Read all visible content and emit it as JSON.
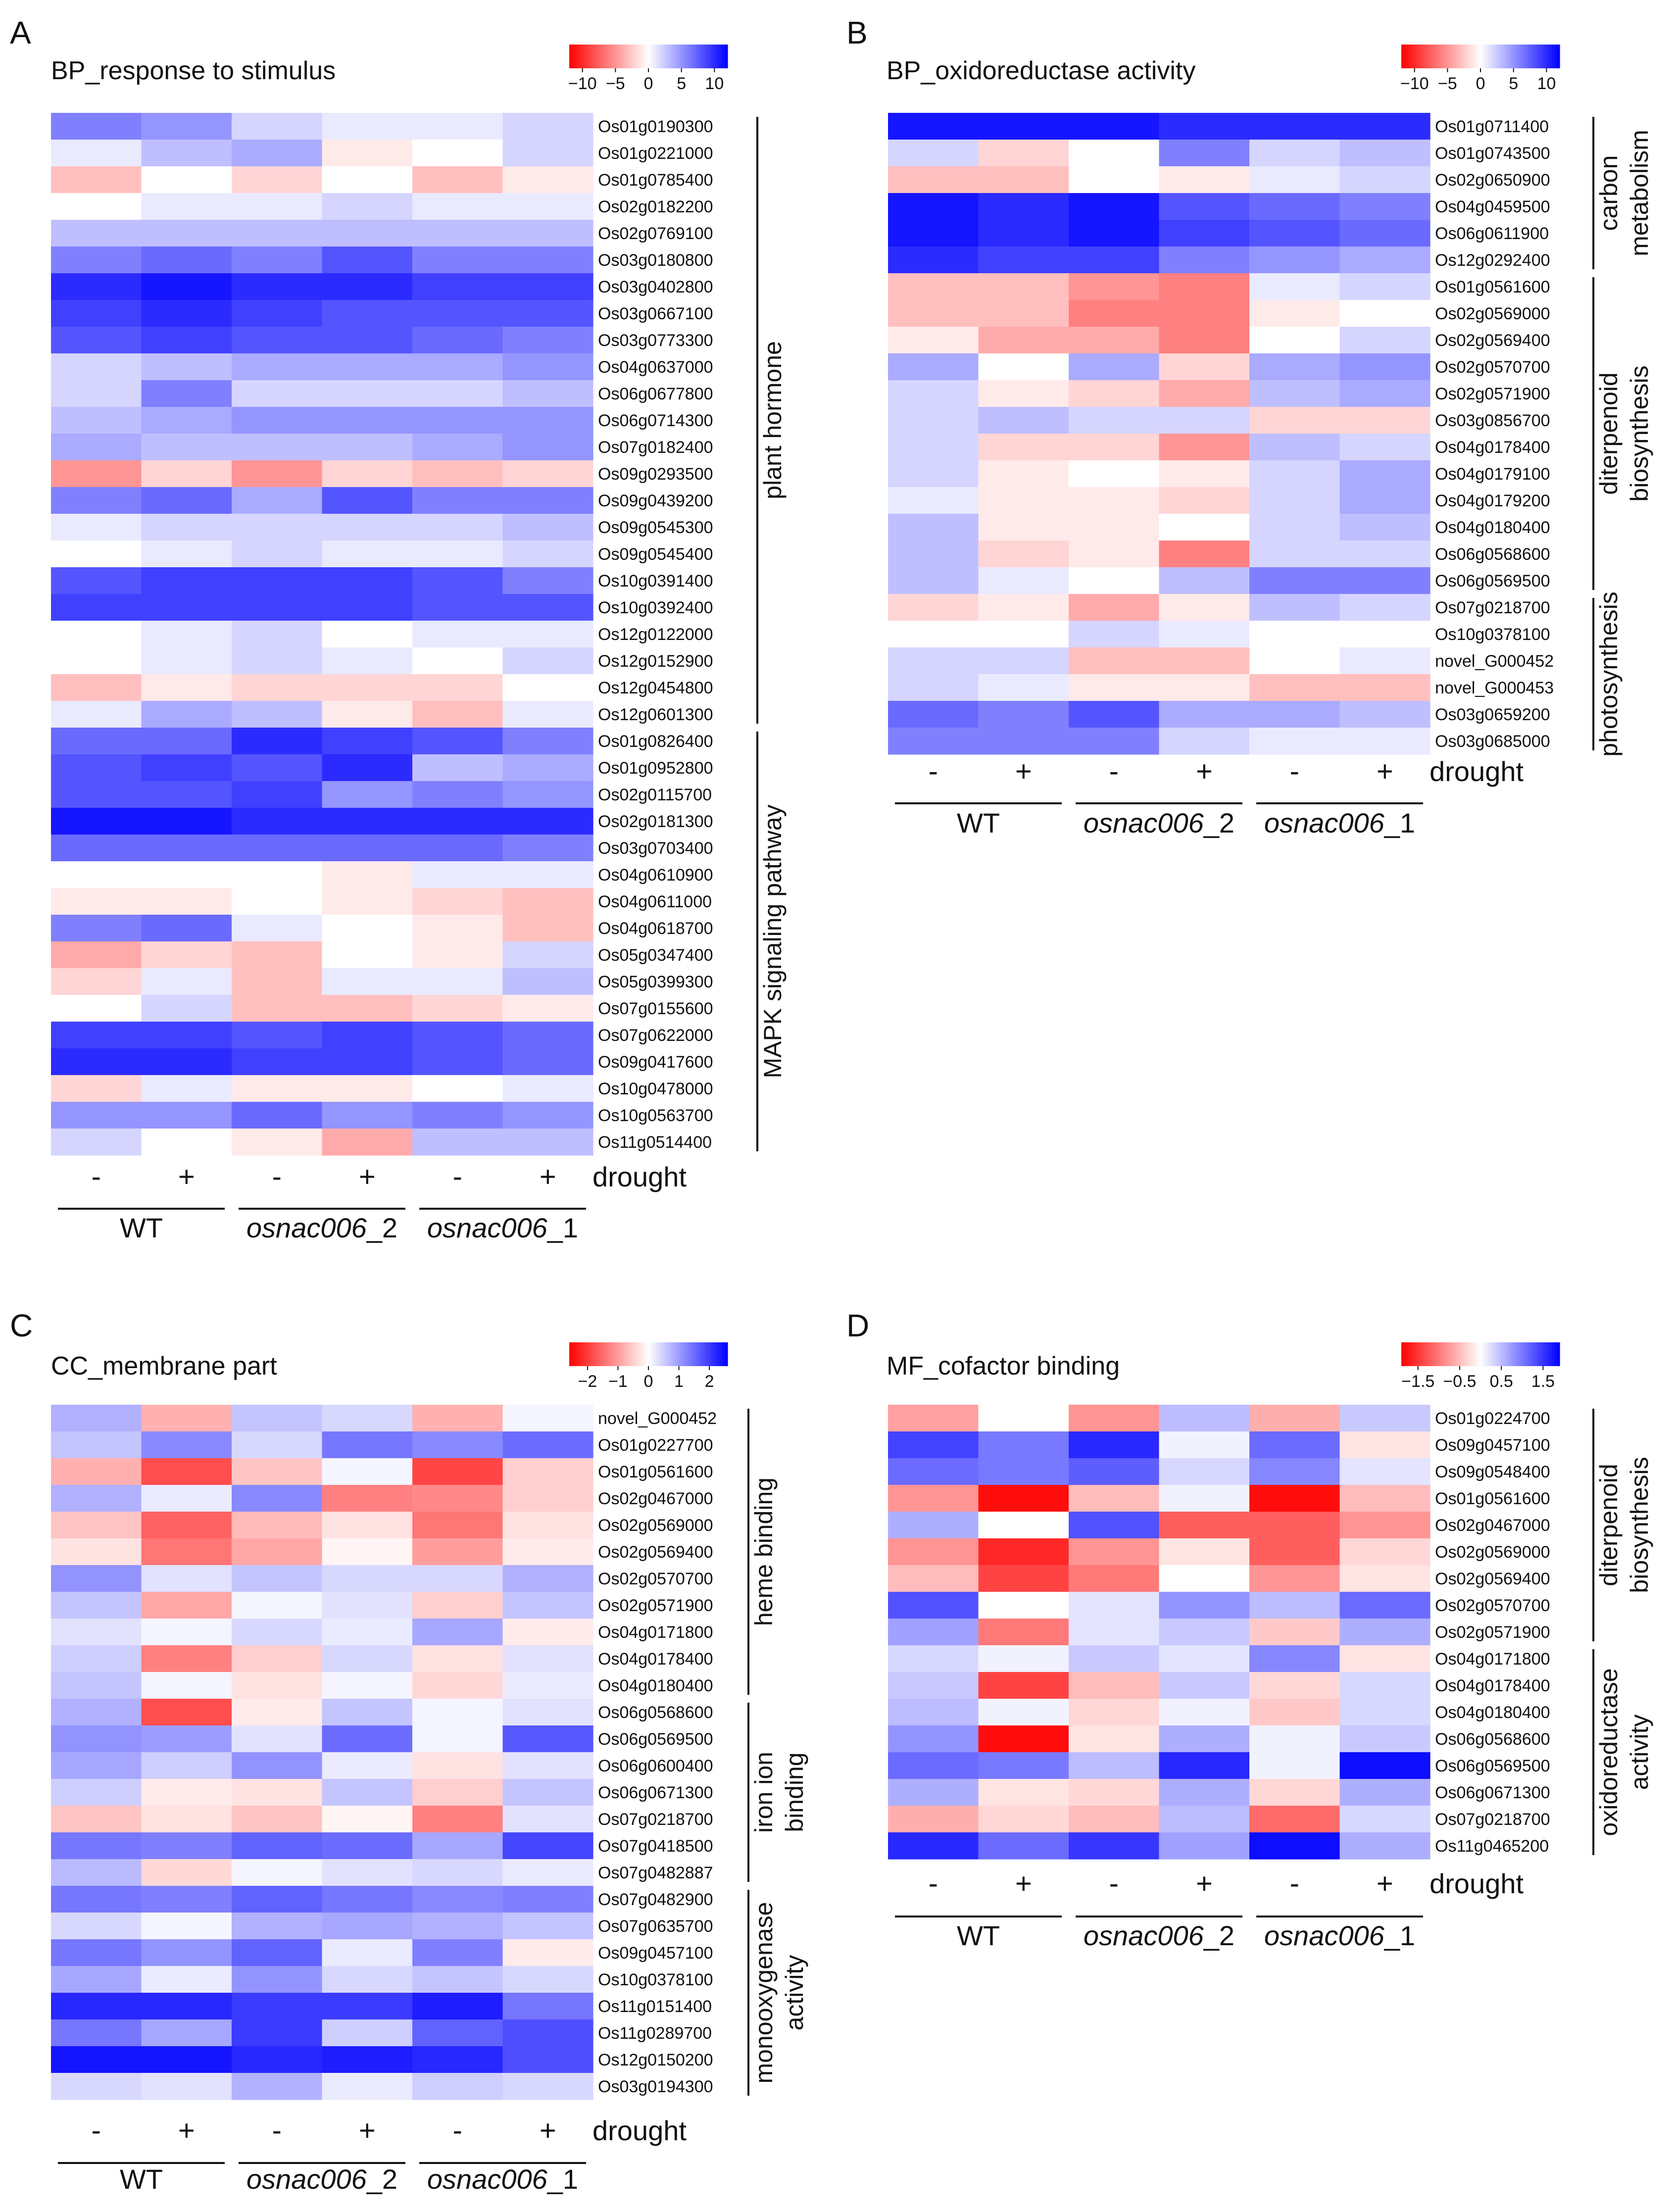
{
  "figure": {
    "conditions": [
      "-",
      "+",
      "-",
      "+",
      "-",
      "+"
    ],
    "condition_axis_label": "drought",
    "genotypes": [
      "WT",
      "osnac006_2",
      "osnac006_1"
    ],
    "genotype_parts": [
      {
        "italic": "",
        "suffix": "WT"
      },
      {
        "italic": "osnac006",
        "suffix": "_2"
      },
      {
        "italic": "osnac006",
        "suffix": "_1"
      }
    ],
    "low_color": "#ff0000",
    "mid_color": "#ffffff",
    "high_color": "#0000ff"
  },
  "chart_data": [
    {
      "type": "heatmap",
      "panel_letter": "A",
      "title": "BP_response to stimulus",
      "legend": {
        "ticks": [
          -10,
          -5,
          0,
          5,
          10
        ],
        "tick_labels": [
          "−10",
          "−5",
          "0",
          "5",
          "10"
        ],
        "range": [
          -12,
          12
        ]
      },
      "rows": [
        "Os01g0190300",
        "Os01g0221000",
        "Os01g0785400",
        "Os02g0182200",
        "Os02g0769100",
        "Os03g0180800",
        "Os03g0402800",
        "Os03g0667100",
        "Os03g0773300",
        "Os04g0637000",
        "Os06g0677800",
        "Os06g0714300",
        "Os07g0182400",
        "Os09g0293500",
        "Os09g0439200",
        "Os09g0545300",
        "Os09g0545400",
        "Os10g0391400",
        "Os10g0392400",
        "Os12g0122000",
        "Os12g0152900",
        "Os12g0454800",
        "Os12g0601300",
        "Os01g0826400",
        "Os01g0952800",
        "Os02g0115700",
        "Os02g0181300",
        "Os03g0703400",
        "Os04g0610900",
        "Os04g0611000",
        "Os04g0618700",
        "Os05g0347400",
        "Os05g0399300",
        "Os07g0155600",
        "Os07g0622000",
        "Os09g0417600",
        "Os10g0478000",
        "Os10g0563700",
        "Os11g0514400"
      ],
      "values": [
        [
          6,
          5,
          2,
          1,
          1,
          2
        ],
        [
          1,
          3,
          4,
          -1,
          0,
          2
        ],
        [
          -3,
          0,
          -2,
          0,
          -3,
          -1
        ],
        [
          0,
          1,
          1,
          2,
          1,
          1
        ],
        [
          3,
          3,
          3,
          3,
          3,
          3
        ],
        [
          6,
          7,
          6,
          8,
          6,
          6
        ],
        [
          10,
          11,
          10,
          10,
          9,
          9
        ],
        [
          9,
          10,
          9,
          8,
          8,
          8
        ],
        [
          8,
          9,
          8,
          8,
          7,
          6
        ],
        [
          2,
          3,
          4,
          4,
          4,
          5
        ],
        [
          2,
          6,
          2,
          2,
          2,
          3
        ],
        [
          3,
          4,
          5,
          5,
          5,
          5
        ],
        [
          4,
          3,
          3,
          3,
          4,
          5
        ],
        [
          -5,
          -2,
          -5,
          -2,
          -3,
          -2
        ],
        [
          6,
          7,
          4,
          8,
          6,
          6
        ],
        [
          1,
          2,
          2,
          2,
          2,
          3
        ],
        [
          0,
          1,
          2,
          1,
          1,
          2
        ],
        [
          8,
          9,
          9,
          9,
          8,
          6
        ],
        [
          9,
          9,
          9,
          9,
          8,
          8
        ],
        [
          0,
          1,
          2,
          0,
          1,
          1
        ],
        [
          0,
          1,
          2,
          1,
          0,
          2
        ],
        [
          -3,
          -1,
          -2,
          -2,
          -2,
          0
        ],
        [
          1,
          4,
          3,
          -1,
          -3,
          1
        ],
        [
          7,
          7,
          10,
          9,
          8,
          6
        ],
        [
          8,
          9,
          8,
          10,
          3,
          4
        ],
        [
          8,
          8,
          9,
          5,
          6,
          5
        ],
        [
          11,
          11,
          10,
          10,
          10,
          10
        ],
        [
          7,
          7,
          7,
          7,
          7,
          6
        ],
        [
          0,
          0,
          0,
          -1,
          1,
          1
        ],
        [
          -1,
          -1,
          0,
          -1,
          -2,
          -3
        ],
        [
          6,
          7,
          1,
          0,
          -1,
          -3
        ],
        [
          -4,
          -2,
          -3,
          0,
          -1,
          2
        ],
        [
          -2,
          1,
          -3,
          1,
          1,
          3
        ],
        [
          0,
          2,
          -3,
          -3,
          -2,
          -1
        ],
        [
          9,
          9,
          8,
          9,
          8,
          7
        ],
        [
          10,
          10,
          9,
          9,
          8,
          7
        ],
        [
          -2,
          1,
          -1,
          -1,
          0,
          1
        ],
        [
          5,
          5,
          7,
          5,
          6,
          5
        ],
        [
          2,
          0,
          -1,
          -4,
          3,
          3
        ]
      ],
      "groups": [
        {
          "label": "plant hormone",
          "lines": [
            "plant hormone"
          ],
          "start": 0,
          "end": 22
        },
        {
          "label": "MAPK signaling pathway",
          "lines": [
            "MAPK signaling pathway"
          ],
          "start": 23,
          "end": 38
        }
      ]
    },
    {
      "type": "heatmap",
      "panel_letter": "B",
      "title": "BP_oxidoreductase activity",
      "legend": {
        "ticks": [
          -10,
          -5,
          0,
          5,
          10
        ],
        "tick_labels": [
          "−10",
          "−5",
          "0",
          "5",
          "10"
        ],
        "range": [
          -12,
          12
        ]
      },
      "rows": [
        "Os01g0711400",
        "Os01g0743500",
        "Os02g0650900",
        "Os04g0459500",
        "Os06g0611900",
        "Os12g0292400",
        "Os01g0561600",
        "Os02g0569000",
        "Os02g0569400",
        "Os02g0570700",
        "Os02g0571900",
        "Os03g0856700",
        "Os04g0178400",
        "Os04g0179100",
        "Os04g0179200",
        "Os04g0180400",
        "Os06g0568600",
        "Os06g0569500",
        "Os07g0218700",
        "Os10g0378100",
        "novel_G000452",
        "novel_G000453",
        "Os03g0659200",
        "Os03g0685000"
      ],
      "values": [
        [
          11,
          11,
          11,
          10,
          10,
          10
        ],
        [
          2,
          -2,
          0,
          6,
          2,
          3
        ],
        [
          -3,
          -3,
          0,
          -1,
          1,
          2
        ],
        [
          11,
          10,
          11,
          8,
          7,
          6
        ],
        [
          11,
          10,
          11,
          9,
          8,
          7
        ],
        [
          10,
          9,
          9,
          6,
          5,
          4
        ],
        [
          -3,
          -3,
          -5,
          -6,
          1,
          2
        ],
        [
          -3,
          -3,
          -6,
          -6,
          -1,
          0
        ],
        [
          -1,
          -4,
          -4,
          -6,
          0,
          2
        ],
        [
          4,
          0,
          4,
          -2,
          4,
          5
        ],
        [
          2,
          -1,
          -2,
          -4,
          3,
          4
        ],
        [
          2,
          3,
          2,
          2,
          -2,
          -2
        ],
        [
          2,
          -2,
          -2,
          -5,
          3,
          2
        ],
        [
          2,
          -1,
          0,
          -1,
          2,
          4
        ],
        [
          1,
          -1,
          -1,
          -2,
          2,
          4
        ],
        [
          3,
          -1,
          -1,
          0,
          2,
          3
        ],
        [
          3,
          -2,
          -1,
          -6,
          2,
          2
        ],
        [
          3,
          1,
          0,
          3,
          6,
          6
        ],
        [
          -2,
          -1,
          -4,
          -1,
          3,
          2
        ],
        [
          0,
          0,
          2,
          1,
          0,
          0
        ],
        [
          2,
          2,
          -3,
          -3,
          0,
          1
        ],
        [
          2,
          1,
          -1,
          -1,
          -3,
          -3
        ],
        [
          7,
          6,
          8,
          4,
          4,
          3
        ],
        [
          6,
          6,
          6,
          2,
          1,
          1
        ]
      ],
      "groups": [
        {
          "label": "carbon metabolism",
          "lines": [
            "carbon",
            "metabolism"
          ],
          "start": 0,
          "end": 5
        },
        {
          "label": "diterpenoid biosynthesis",
          "lines": [
            "diterpenoid",
            "biosynthesis"
          ],
          "start": 6,
          "end": 17
        },
        {
          "label": "photosynthesis",
          "lines": [
            "photosynthesis"
          ],
          "start": 18,
          "end": 23
        }
      ]
    },
    {
      "type": "heatmap",
      "panel_letter": "C",
      "title": "CC_membrane part",
      "legend": {
        "ticks": [
          -2,
          -1,
          0,
          1,
          2
        ],
        "tick_labels": [
          "−2",
          "−1",
          "0",
          "1",
          "2"
        ],
        "range": [
          -2.6,
          2.6
        ]
      },
      "rows": [
        "novel_G000452",
        "Os01g0227700",
        "Os01g0561600",
        "Os02g0467000",
        "Os02g0569000",
        "Os02g0569400",
        "Os02g0570700",
        "Os02g0571900",
        "Os04g0171800",
        "Os04g0178400",
        "Os04g0180400",
        "Os06g0568600",
        "Os06g0569500",
        "Os06g0600400",
        "Os06g0671300",
        "Os07g0218700",
        "Os07g0418500",
        "Os07g0482887",
        "Os07g0482900",
        "Os07g0635700",
        "Os09g0457100",
        "Os10g0378100",
        "Os11g0151400",
        "Os11g0289700",
        "Os12g0150200",
        "Os03g0194300"
      ],
      "values": [
        [
          0.8,
          -0.8,
          0.6,
          0.4,
          -0.8,
          0.1
        ],
        [
          0.6,
          1.2,
          0.4,
          1.4,
          1.2,
          1.5
        ],
        [
          -0.8,
          -1.8,
          -0.6,
          0.1,
          -1.9,
          -0.5
        ],
        [
          0.8,
          0.2,
          1.2,
          -1.3,
          -1.2,
          -0.5
        ],
        [
          -0.6,
          -1.6,
          -0.7,
          -0.3,
          -1.4,
          -0.3
        ],
        [
          -0.3,
          -1.4,
          -0.9,
          -0.1,
          -1.0,
          -0.2
        ],
        [
          1.1,
          0.3,
          0.6,
          0.4,
          0.4,
          0.8
        ],
        [
          0.6,
          -0.9,
          0.1,
          0.3,
          -0.5,
          0.6
        ],
        [
          0.3,
          0.1,
          0.4,
          0.2,
          0.9,
          -0.2
        ],
        [
          0.5,
          -1.3,
          -0.5,
          0.4,
          -0.3,
          0.3
        ],
        [
          0.6,
          0.1,
          -0.3,
          0.1,
          -0.4,
          0.2
        ],
        [
          0.8,
          -1.8,
          -0.2,
          0.6,
          0.1,
          0.3
        ],
        [
          1.1,
          1.0,
          0.3,
          1.5,
          0.1,
          1.7
        ],
        [
          0.9,
          0.5,
          1.1,
          0.2,
          -0.3,
          0.3
        ],
        [
          0.5,
          -0.2,
          -0.3,
          0.6,
          -0.5,
          0.6
        ],
        [
          -0.6,
          -0.3,
          -0.6,
          -0.1,
          -1.3,
          0.3
        ],
        [
          1.4,
          1.3,
          1.6,
          1.5,
          0.9,
          1.9
        ],
        [
          0.7,
          -0.4,
          0.1,
          0.3,
          0.4,
          0.2
        ],
        [
          1.4,
          1.3,
          1.6,
          1.4,
          1.2,
          1.3
        ],
        [
          0.4,
          0.1,
          0.8,
          0.9,
          0.8,
          0.6
        ],
        [
          1.4,
          1.1,
          1.6,
          0.2,
          1.3,
          -0.2
        ],
        [
          0.9,
          0.2,
          1.1,
          0.4,
          0.6,
          0.4
        ],
        [
          2.2,
          2.2,
          2.0,
          2.0,
          2.3,
          1.4
        ],
        [
          1.4,
          0.9,
          2.0,
          0.5,
          1.6,
          1.8
        ],
        [
          2.4,
          2.4,
          2.2,
          2.3,
          2.2,
          1.8
        ],
        [
          0.4,
          0.3,
          0.8,
          0.2,
          0.5,
          0.4
        ]
      ],
      "groups": [
        {
          "label": "heme binding",
          "lines": [
            "heme binding"
          ],
          "start": 0,
          "end": 10
        },
        {
          "label": "iron ion binding",
          "lines": [
            "iron ion",
            "binding"
          ],
          "start": 11,
          "end": 17
        },
        {
          "label": "monooxygenase activity",
          "lines": [
            "monooxygenase",
            "activity"
          ],
          "start": 18,
          "end": 25
        }
      ]
    },
    {
      "type": "heatmap",
      "panel_letter": "D",
      "title": "MF_cofactor binding",
      "legend": {
        "ticks": [
          -1.5,
          -0.5,
          0.5,
          1.5
        ],
        "tick_labels": [
          "−1.5",
          "−0.5",
          "0.5",
          "1.5"
        ],
        "range": [
          -1.9,
          1.9
        ]
      },
      "rows": [
        "Os01g0224700",
        "Os09g0457100",
        "Os09g0548400",
        "Os01g0561600",
        "Os02g0467000",
        "Os02g0569000",
        "Os02g0569400",
        "Os02g0570700",
        "Os02g0571900",
        "Os04g0171800",
        "Os04g0178400",
        "Os04g0180400",
        "Os06g0568600",
        "Os06g0569500",
        "Os06g0671300",
        "Os07g0218700",
        "Os11g0465200"
      ],
      "values": [
        [
          -0.7,
          0.0,
          -0.8,
          0.5,
          -0.6,
          0.4
        ],
        [
          1.4,
          1.0,
          1.6,
          0.1,
          1.1,
          -0.2
        ],
        [
          1.1,
          1.0,
          1.2,
          0.3,
          0.9,
          0.2
        ],
        [
          -0.8,
          -1.8,
          -0.5,
          0.1,
          -1.8,
          -0.5
        ],
        [
          0.6,
          0.0,
          1.3,
          -1.2,
          -1.2,
          -0.8
        ],
        [
          -0.8,
          -1.6,
          -0.8,
          -0.2,
          -1.2,
          -0.3
        ],
        [
          -0.5,
          -1.4,
          -1.0,
          0.0,
          -0.8,
          -0.2
        ],
        [
          1.3,
          0.0,
          0.2,
          0.8,
          0.5,
          1.1
        ],
        [
          0.7,
          -1.0,
          0.2,
          0.4,
          -0.4,
          0.6
        ],
        [
          0.3,
          0.1,
          0.4,
          0.2,
          0.9,
          -0.2
        ],
        [
          0.4,
          -1.4,
          -0.5,
          0.4,
          -0.3,
          0.3
        ],
        [
          0.5,
          0.1,
          -0.3,
          0.1,
          -0.4,
          0.3
        ],
        [
          0.8,
          -1.8,
          -0.2,
          0.6,
          0.1,
          0.4
        ],
        [
          1.1,
          1.0,
          0.5,
          1.6,
          0.1,
          1.8
        ],
        [
          0.6,
          -0.2,
          -0.3,
          0.6,
          -0.3,
          0.6
        ],
        [
          -0.6,
          -0.3,
          -0.5,
          0.5,
          -1.1,
          0.3
        ],
        [
          1.6,
          1.1,
          1.5,
          0.7,
          1.8,
          0.6
        ]
      ],
      "groups": [
        {
          "label": "diterpenoid biosynthesis",
          "lines": [
            "diterpenoid",
            "biosynthesis"
          ],
          "start": 0,
          "end": 8
        },
        {
          "label": "oxidoreductase activity",
          "lines": [
            "oxidoreductase",
            "activity"
          ],
          "start": 9,
          "end": 16
        }
      ]
    }
  ]
}
